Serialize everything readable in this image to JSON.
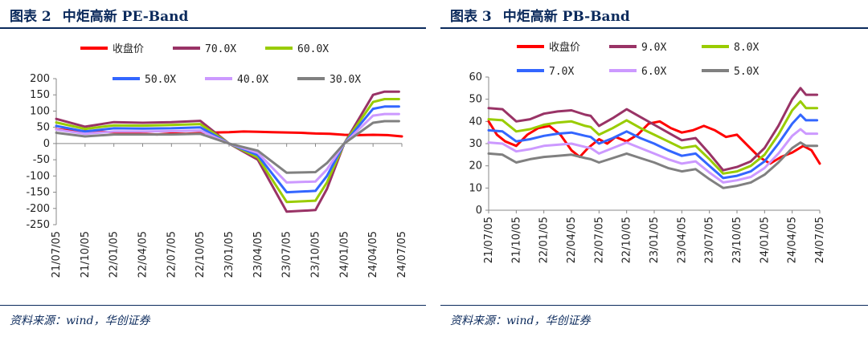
{
  "panels": [
    {
      "fig_label": "图表 2",
      "title": "中炬高新 PE-Band",
      "source": "资料来源：wind，华创证券"
    },
    {
      "fig_label": "图表 3",
      "title": "中炬高新 PB-Band",
      "source": "资料来源：wind，华创证券"
    }
  ],
  "colors": {
    "price": "#ff0000",
    "band1": "#993366",
    "band2": "#99cc00",
    "band3": "#3366ff",
    "band4": "#cc99ff",
    "band5": "#808080"
  },
  "chart_data": [
    {
      "type": "line",
      "title": "中炬高新 PE-Band",
      "categories": [
        "21/07/05",
        "21/10/05",
        "22/01/05",
        "22/04/05",
        "22/07/05",
        "22/10/05",
        "23/01/05",
        "23/04/05",
        "23/07/05",
        "23/10/05",
        "24/01/05",
        "24/04/05",
        "24/07/05"
      ],
      "ylim": [
        -250,
        200
      ],
      "yticks": [
        -250,
        -200,
        -150,
        -100,
        -50,
        0,
        50,
        100,
        150,
        200
      ],
      "legend": [
        "收盘价",
        "70.0X",
        "60.0X",
        "50.0X",
        "40.0X",
        "30.0X"
      ],
      "series": [
        {
          "name": "收盘价",
          "x": [
            0,
            0.5,
            1,
            1.5,
            2,
            2.5,
            3,
            3.5,
            4,
            4.5,
            5,
            5.5,
            6,
            6.5,
            7,
            7.5,
            8,
            8.5,
            9,
            9.5,
            10,
            10.5,
            11,
            11.5,
            12
          ],
          "values": [
            44,
            40,
            38,
            36,
            35,
            33,
            30,
            28,
            31,
            30,
            32,
            34,
            35,
            37,
            36,
            35,
            34,
            33,
            31,
            30,
            27,
            26,
            27,
            26,
            22
          ]
        },
        {
          "name": "70.0X",
          "x": [
            0,
            1,
            2,
            3,
            4,
            5,
            6,
            7,
            8,
            9,
            9.4,
            10,
            11,
            11.4,
            11.9
          ],
          "values": [
            76,
            52,
            66,
            64,
            66,
            70,
            0,
            -50,
            -210,
            -205,
            -140,
            0,
            150,
            160,
            160
          ]
        },
        {
          "name": "60.0X",
          "x": [
            0,
            1,
            2,
            3,
            4,
            5,
            6,
            7,
            8,
            9,
            9.4,
            10,
            11,
            11.4,
            11.9
          ],
          "values": [
            65,
            45,
            56,
            55,
            57,
            60,
            0,
            -43,
            -180,
            -176,
            -120,
            0,
            128,
            137,
            137
          ]
        },
        {
          "name": "50.0X",
          "x": [
            0,
            1,
            2,
            3,
            4,
            5,
            6,
            7,
            8,
            9,
            9.4,
            10,
            11,
            11.4,
            11.9
          ],
          "values": [
            54,
            37,
            47,
            46,
            47,
            50,
            0,
            -36,
            -150,
            -146,
            -100,
            0,
            107,
            114,
            114
          ]
        },
        {
          "name": "40.0X",
          "x": [
            0,
            1,
            2,
            3,
            4,
            5,
            6,
            7,
            8,
            9,
            9.4,
            10,
            11,
            11.4,
            11.9
          ],
          "values": [
            43,
            30,
            37,
            37,
            38,
            40,
            0,
            -29,
            -120,
            -117,
            -80,
            0,
            86,
            91,
            91
          ]
        },
        {
          "name": "30.0X",
          "x": [
            0,
            1,
            2,
            3,
            4,
            5,
            6,
            7,
            8,
            9,
            9.4,
            10,
            11,
            11.4,
            11.9
          ],
          "values": [
            33,
            22,
            28,
            28,
            28,
            30,
            0,
            -22,
            -90,
            -88,
            -60,
            0,
            64,
            69,
            69
          ]
        }
      ]
    },
    {
      "type": "line",
      "title": "中炬高新 PB-Band",
      "categories": [
        "21/07/05",
        "21/10/05",
        "22/01/05",
        "22/04/05",
        "22/07/05",
        "22/10/05",
        "23/01/05",
        "23/04/05",
        "23/07/05",
        "23/10/05",
        "24/01/05",
        "24/04/05",
        "24/07/05"
      ],
      "ylim": [
        0,
        60
      ],
      "yticks": [
        0,
        10,
        20,
        30,
        40,
        50,
        60
      ],
      "legend": [
        "收盘价",
        "9.0X",
        "8.0X",
        "7.0X",
        "6.0X",
        "5.0X"
      ],
      "series": [
        {
          "name": "收盘价",
          "x": [
            0,
            0.3,
            0.6,
            1,
            1.4,
            1.8,
            2.2,
            2.6,
            3,
            3.3,
            3.6,
            4,
            4.3,
            4.6,
            5,
            5.4,
            5.8,
            6.2,
            6.6,
            7,
            7.4,
            7.8,
            8.2,
            8.6,
            9,
            9.4,
            9.8,
            10.2,
            10.6,
            11,
            11.4,
            11.7,
            12
          ],
          "values": [
            40,
            34,
            31,
            29,
            34,
            37,
            38,
            34,
            27,
            24,
            28,
            32,
            30,
            33,
            31,
            34,
            39,
            40,
            37,
            35,
            36,
            38,
            36,
            33,
            34,
            29,
            24,
            21,
            24,
            26,
            29,
            27,
            21
          ]
        },
        {
          "name": "9.0X",
          "x": [
            0,
            0.5,
            1,
            1.5,
            2,
            2.5,
            3,
            3.5,
            3.7,
            4,
            4.5,
            5,
            5.5,
            6,
            6.5,
            7,
            7.5,
            8,
            8.5,
            9,
            9.5,
            10,
            10.5,
            11,
            11.3,
            11.5,
            11.9
          ],
          "values": [
            46,
            45.5,
            40,
            41,
            43.5,
            44.5,
            45,
            43,
            42.5,
            38,
            41.5,
            45.5,
            42,
            38.5,
            35,
            31.5,
            32.5,
            25.5,
            18,
            19.5,
            22,
            28,
            38,
            50,
            55,
            52,
            52
          ]
        },
        {
          "name": "8.0X",
          "x": [
            0,
            0.5,
            1,
            1.5,
            2,
            2.5,
            3,
            3.5,
            3.7,
            4,
            4.5,
            5,
            5.5,
            6,
            6.5,
            7,
            7.5,
            8,
            8.5,
            9,
            9.5,
            10,
            10.5,
            11,
            11.3,
            11.5,
            11.9
          ],
          "values": [
            41,
            40.5,
            35.5,
            36.5,
            38.5,
            39.5,
            40,
            38,
            37.5,
            34,
            37,
            40.5,
            37,
            34,
            31,
            28,
            29,
            23,
            16.5,
            17.5,
            20,
            25,
            34,
            45,
            49,
            46,
            46
          ]
        },
        {
          "name": "7.0X",
          "x": [
            0,
            0.5,
            1,
            1.5,
            2,
            2.5,
            3,
            3.5,
            3.7,
            4,
            4.5,
            5,
            5.5,
            6,
            6.5,
            7,
            7.5,
            8,
            8.5,
            9,
            9.5,
            10,
            10.5,
            11,
            11.3,
            11.5,
            11.9
          ],
          "values": [
            36,
            35.5,
            31,
            32,
            33.5,
            34.5,
            35,
            33.5,
            33,
            30,
            32.5,
            35.5,
            32.5,
            30,
            27,
            24.5,
            25.5,
            20,
            14.5,
            15.5,
            17.5,
            22,
            30,
            39,
            43,
            40.5,
            40.5
          ]
        },
        {
          "name": "6.0X",
          "x": [
            0,
            0.5,
            1,
            1.5,
            2,
            2.5,
            3,
            3.5,
            3.7,
            4,
            4.5,
            5,
            5.5,
            6,
            6.5,
            7,
            7.5,
            8,
            8.5,
            9,
            9.5,
            10,
            10.5,
            11,
            11.3,
            11.5,
            11.9
          ],
          "values": [
            30.5,
            30,
            26.5,
            27.5,
            29,
            29.5,
            30,
            28.5,
            28,
            25.5,
            28,
            30.5,
            28,
            25.5,
            23,
            21,
            22,
            17,
            12.5,
            13.5,
            15,
            19,
            25.5,
            33.5,
            36.5,
            34.5,
            34.5
          ]
        },
        {
          "name": "5.0X",
          "x": [
            0,
            0.5,
            1,
            1.5,
            2,
            2.5,
            3,
            3.5,
            3.7,
            4,
            4.5,
            5,
            5.5,
            6,
            6.5,
            7,
            7.5,
            8,
            8.5,
            9,
            9.5,
            10,
            10.5,
            11,
            11.3,
            11.5,
            11.9
          ],
          "values": [
            25.5,
            25,
            21.5,
            23,
            24,
            24.5,
            25,
            23.5,
            23,
            21.5,
            23.5,
            25.5,
            23.5,
            21.5,
            19,
            17.5,
            18.5,
            14,
            10,
            11,
            12.5,
            16,
            21.5,
            28,
            30.5,
            29,
            29
          ]
        }
      ]
    }
  ]
}
